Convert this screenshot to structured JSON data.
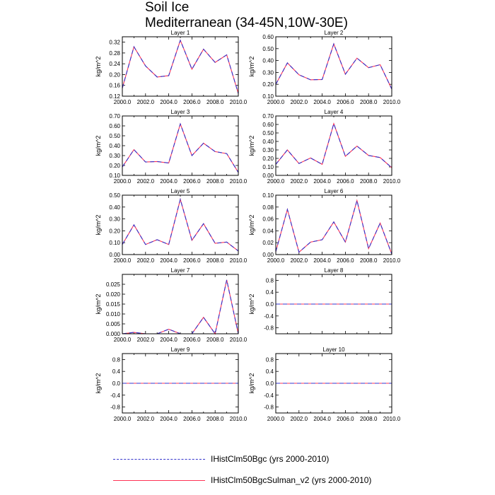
{
  "title": {
    "line1": "Soil Ice",
    "line2": "Mediterranean (34-45N,10W-30E)"
  },
  "colors": {
    "series1": "#3333cc",
    "series2": "#ff3355",
    "frame": "#000000"
  },
  "legend": [
    {
      "label": "IHistClm50Bgc (yrs 2000-2010)"
    },
    {
      "label": "IHistClm50BgcSulman_v2 (yrs 2000-2010)"
    }
  ],
  "chart_data": [
    {
      "type": "line",
      "title": "Layer 1",
      "ylabel": "kg/m^2",
      "x": [
        2000,
        2001,
        2002,
        2003,
        2004,
        2005,
        2006,
        2007,
        2008,
        2009,
        2010
      ],
      "ylim": [
        0.12,
        0.34
      ],
      "yticks": [
        0.12,
        0.16,
        0.2,
        0.24,
        0.28,
        0.32
      ],
      "ytick_labels": [
        "0.12",
        "0.16",
        "0.20",
        "0.24",
        "0.28",
        "0.32"
      ],
      "xticks": [
        2000,
        2002,
        2004,
        2006,
        2008,
        2010
      ],
      "xtick_labels": [
        "2000.0",
        "2002.0",
        "2004.0",
        "2006.0",
        "2008.0",
        "2010.0"
      ],
      "series": [
        {
          "name": "IHistClm50Bgc (yrs 2000-2010)",
          "values": [
            0.15,
            0.303,
            0.232,
            0.191,
            0.196,
            0.327,
            0.22,
            0.294,
            0.245,
            0.273,
            0.13
          ]
        },
        {
          "name": "IHistClm50BgcSulman_v2 (yrs 2000-2010)",
          "values": [
            0.15,
            0.303,
            0.232,
            0.191,
            0.196,
            0.327,
            0.22,
            0.294,
            0.245,
            0.273,
            0.13
          ]
        }
      ]
    },
    {
      "type": "line",
      "title": "Layer 2",
      "ylabel": "kg/m^2",
      "x": [
        2000,
        2001,
        2002,
        2003,
        2004,
        2005,
        2006,
        2007,
        2008,
        2009,
        2010
      ],
      "ylim": [
        0.1,
        0.6
      ],
      "yticks": [
        0.1,
        0.2,
        0.3,
        0.4,
        0.5,
        0.6
      ],
      "ytick_labels": [
        "0.10",
        "0.20",
        "0.30",
        "0.40",
        "0.50",
        "0.60"
      ],
      "xticks": [
        2000,
        2002,
        2004,
        2006,
        2008,
        2010
      ],
      "xtick_labels": [
        "2000.0",
        "2002.0",
        "2004.0",
        "2006.0",
        "2008.0",
        "2010.0"
      ],
      "series": [
        {
          "name": "IHistClm50Bgc (yrs 2000-2010)",
          "values": [
            0.2,
            0.38,
            0.28,
            0.238,
            0.24,
            0.54,
            0.285,
            0.42,
            0.34,
            0.365,
            0.16
          ]
        },
        {
          "name": "IHistClm50BgcSulman_v2 (yrs 2000-2010)",
          "values": [
            0.2,
            0.38,
            0.28,
            0.238,
            0.24,
            0.54,
            0.285,
            0.42,
            0.34,
            0.365,
            0.16
          ]
        }
      ]
    },
    {
      "type": "line",
      "title": "Layer 3",
      "ylabel": "kg/m^2",
      "x": [
        2000,
        2001,
        2002,
        2003,
        2004,
        2005,
        2006,
        2007,
        2008,
        2009,
        2010
      ],
      "ylim": [
        0.1,
        0.7
      ],
      "yticks": [
        0.1,
        0.2,
        0.3,
        0.4,
        0.5,
        0.6,
        0.7
      ],
      "ytick_labels": [
        "0.10",
        "0.20",
        "0.30",
        "0.40",
        "0.50",
        "0.60",
        "0.70"
      ],
      "xticks": [
        2000,
        2002,
        2004,
        2006,
        2008,
        2010
      ],
      "xtick_labels": [
        "2000.0",
        "2002.0",
        "2004.0",
        "2006.0",
        "2008.0",
        "2010.0"
      ],
      "series": [
        {
          "name": "IHistClm50Bgc (yrs 2000-2010)",
          "values": [
            0.185,
            0.36,
            0.235,
            0.24,
            0.225,
            0.62,
            0.3,
            0.425,
            0.34,
            0.32,
            0.13
          ]
        },
        {
          "name": "IHistClm50BgcSulman_v2 (yrs 2000-2010)",
          "values": [
            0.185,
            0.36,
            0.235,
            0.24,
            0.225,
            0.62,
            0.3,
            0.425,
            0.34,
            0.32,
            0.13
          ]
        }
      ]
    },
    {
      "type": "line",
      "title": "Layer 4",
      "ylabel": "kg/m^2",
      "x": [
        2000,
        2001,
        2002,
        2003,
        2004,
        2005,
        2006,
        2007,
        2008,
        2009,
        2010
      ],
      "ylim": [
        0.0,
        0.7
      ],
      "yticks": [
        0.0,
        0.1,
        0.2,
        0.3,
        0.4,
        0.5,
        0.6,
        0.7
      ],
      "ytick_labels": [
        "0.00",
        "0.10",
        "0.20",
        "0.30",
        "0.40",
        "0.50",
        "0.60",
        "0.70"
      ],
      "xticks": [
        2000,
        2002,
        2004,
        2006,
        2008,
        2010
      ],
      "xtick_labels": [
        "2000.0",
        "2002.0",
        "2004.0",
        "2006.0",
        "2008.0",
        "2010.0"
      ],
      "series": [
        {
          "name": "IHistClm50Bgc (yrs 2000-2010)",
          "values": [
            0.13,
            0.3,
            0.14,
            0.205,
            0.13,
            0.61,
            0.225,
            0.345,
            0.235,
            0.21,
            0.09
          ]
        },
        {
          "name": "IHistClm50BgcSulman_v2 (yrs 2000-2010)",
          "values": [
            0.13,
            0.3,
            0.14,
            0.205,
            0.13,
            0.61,
            0.225,
            0.345,
            0.235,
            0.21,
            0.09
          ]
        }
      ]
    },
    {
      "type": "line",
      "title": "Layer 5",
      "ylabel": "kg/m^2",
      "x": [
        2000,
        2001,
        2002,
        2003,
        2004,
        2005,
        2006,
        2007,
        2008,
        2009,
        2010
      ],
      "ylim": [
        0.0,
        0.5
      ],
      "yticks": [
        0.0,
        0.1,
        0.2,
        0.3,
        0.4,
        0.5
      ],
      "ytick_labels": [
        "0.00",
        "0.10",
        "0.20",
        "0.30",
        "0.40",
        "0.50"
      ],
      "xticks": [
        2000,
        2002,
        2004,
        2006,
        2008,
        2010
      ],
      "xtick_labels": [
        "2000.0",
        "2002.0",
        "2004.0",
        "2006.0",
        "2008.0",
        "2010.0"
      ],
      "series": [
        {
          "name": "IHistClm50Bgc (yrs 2000-2010)",
          "values": [
            0.085,
            0.25,
            0.085,
            0.125,
            0.085,
            0.465,
            0.12,
            0.26,
            0.095,
            0.105,
            0.03
          ]
        },
        {
          "name": "IHistClm50BgcSulman_v2 (yrs 2000-2010)",
          "values": [
            0.085,
            0.25,
            0.085,
            0.125,
            0.085,
            0.465,
            0.12,
            0.26,
            0.095,
            0.105,
            0.03
          ]
        }
      ]
    },
    {
      "type": "line",
      "title": "Layer 6",
      "ylabel": "kg/m^2",
      "x": [
        2000,
        2001,
        2002,
        2003,
        2004,
        2005,
        2006,
        2007,
        2008,
        2009,
        2010
      ],
      "ylim": [
        0.0,
        0.1
      ],
      "yticks": [
        0.0,
        0.02,
        0.04,
        0.06,
        0.08,
        0.1
      ],
      "ytick_labels": [
        "0.00",
        "0.02",
        "0.04",
        "0.06",
        "0.08",
        "0.10"
      ],
      "xticks": [
        2000,
        2002,
        2004,
        2006,
        2008,
        2010
      ],
      "xtick_labels": [
        "2000.0",
        "2002.0",
        "2004.0",
        "2006.0",
        "2008.0",
        "2010.0"
      ],
      "series": [
        {
          "name": "IHistClm50Bgc (yrs 2000-2010)",
          "values": [
            0.005,
            0.076,
            0.004,
            0.021,
            0.025,
            0.055,
            0.021,
            0.091,
            0.01,
            0.053,
            0.001
          ]
        },
        {
          "name": "IHistClm50BgcSulman_v2 (yrs 2000-2010)",
          "values": [
            0.005,
            0.076,
            0.004,
            0.021,
            0.025,
            0.055,
            0.021,
            0.091,
            0.01,
            0.053,
            0.001
          ]
        }
      ]
    },
    {
      "type": "line",
      "title": "Layer 7",
      "ylabel": "kg/m^2",
      "x": [
        2000,
        2001,
        2002,
        2003,
        2004,
        2005,
        2006,
        2007,
        2008,
        2009,
        2010
      ],
      "ylim": [
        0.0,
        0.03
      ],
      "yticks": [
        0.0,
        0.005,
        0.01,
        0.015,
        0.02,
        0.025
      ],
      "ytick_labels": [
        "0.000",
        "0.005",
        "0.010",
        "0.015",
        "0.020",
        "0.025"
      ],
      "xticks": [
        2000,
        2002,
        2004,
        2006,
        2008,
        2010
      ],
      "xtick_labels": [
        "2000.0",
        "2002.0",
        "2004.0",
        "2006.0",
        "2008.0",
        "2010.0"
      ],
      "series": [
        {
          "name": "IHistClm50Bgc (yrs 2000-2010)",
          "values": [
            0.0,
            0.0007,
            0.0,
            0.0,
            0.0023,
            0.0,
            0.0,
            0.0083,
            0.0,
            0.0272,
            0.0
          ]
        },
        {
          "name": "IHistClm50BgcSulman_v2 (yrs 2000-2010)",
          "values": [
            0.0,
            0.0007,
            0.0,
            0.0,
            0.0023,
            0.0,
            0.0,
            0.0083,
            0.0,
            0.0272,
            0.0
          ]
        }
      ]
    },
    {
      "type": "line",
      "title": "Layer 8",
      "ylabel": "kg/m^2",
      "x": [
        2000,
        2001,
        2002,
        2003,
        2004,
        2005,
        2006,
        2007,
        2008,
        2009,
        2010
      ],
      "ylim": [
        -1.0,
        1.0
      ],
      "yticks": [
        -0.8,
        -0.4,
        0.0,
        0.4,
        0.8
      ],
      "ytick_labels": [
        "-0.8",
        "-0.4",
        "0.0",
        "0.4",
        "0.8"
      ],
      "xticks": [
        2000,
        2002,
        2004,
        2006,
        2008,
        2010
      ],
      "xtick_labels": [],
      "series": [
        {
          "name": "IHistClm50Bgc (yrs 2000-2010)",
          "values": [
            0,
            0,
            0,
            0,
            0,
            0,
            0,
            0,
            0,
            0,
            0
          ]
        },
        {
          "name": "IHistClm50BgcSulman_v2 (yrs 2000-2010)",
          "values": [
            0,
            0,
            0,
            0,
            0,
            0,
            0,
            0,
            0,
            0,
            0
          ]
        }
      ]
    },
    {
      "type": "line",
      "title": "Layer 9",
      "ylabel": "kg/m^2",
      "x": [
        2000,
        2001,
        2002,
        2003,
        2004,
        2005,
        2006,
        2007,
        2008,
        2009,
        2010
      ],
      "ylim": [
        -1.0,
        1.0
      ],
      "yticks": [
        -0.8,
        -0.4,
        0.0,
        0.4,
        0.8
      ],
      "ytick_labels": [
        "-0.8",
        "-0.4",
        "0.0",
        "0.4",
        "0.8"
      ],
      "xticks": [
        2000,
        2002,
        2004,
        2006,
        2008,
        2010
      ],
      "xtick_labels": [
        "2000.0",
        "2002.0",
        "2004.0",
        "2006.0",
        "2008.0",
        "2010.0"
      ],
      "series": [
        {
          "name": "IHistClm50Bgc (yrs 2000-2010)",
          "values": [
            0,
            0,
            0,
            0,
            0,
            0,
            0,
            0,
            0,
            0,
            0
          ]
        },
        {
          "name": "IHistClm50BgcSulman_v2 (yrs 2000-2010)",
          "values": [
            0,
            0,
            0,
            0,
            0,
            0,
            0,
            0,
            0,
            0,
            0
          ]
        }
      ]
    },
    {
      "type": "line",
      "title": "Layer 10",
      "ylabel": "kg/m^2",
      "x": [
        2000,
        2001,
        2002,
        2003,
        2004,
        2005,
        2006,
        2007,
        2008,
        2009,
        2010
      ],
      "ylim": [
        -1.0,
        1.0
      ],
      "yticks": [
        -0.8,
        -0.4,
        0.0,
        0.4,
        0.8
      ],
      "ytick_labels": [
        "-0.8",
        "-0.4",
        "0.0",
        "0.4",
        "0.8"
      ],
      "xticks": [
        2000,
        2002,
        2004,
        2006,
        2008,
        2010
      ],
      "xtick_labels": [
        "2000.0",
        "2002.0",
        "2004.0",
        "2006.0",
        "2008.0",
        "2010.0"
      ],
      "series": [
        {
          "name": "IHistClm50Bgc (yrs 2000-2010)",
          "values": [
            0,
            0,
            0,
            0,
            0,
            0,
            0,
            0,
            0,
            0,
            0
          ]
        },
        {
          "name": "IHistClm50BgcSulman_v2 (yrs 2000-2010)",
          "values": [
            0,
            0,
            0,
            0,
            0,
            0,
            0,
            0,
            0,
            0,
            0
          ]
        }
      ]
    }
  ]
}
